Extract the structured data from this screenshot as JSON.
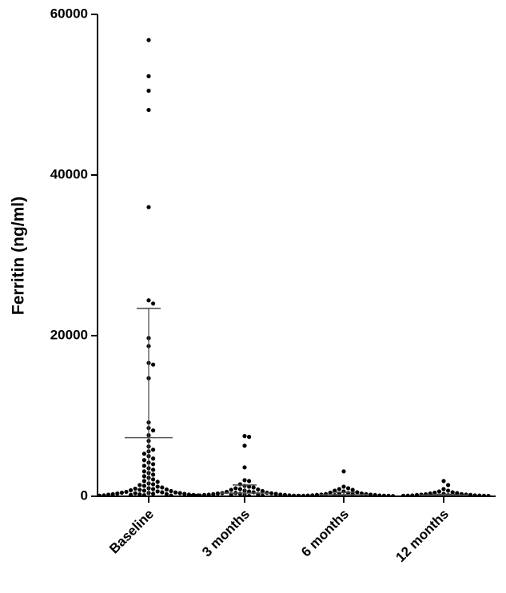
{
  "chart_data": {
    "type": "dotplot",
    "ylabel": "Ferritin (ng/ml)",
    "color": "#000000",
    "categories": [
      "Baseline",
      "3 months",
      "6 months",
      "12 months"
    ],
    "ylim": [
      0,
      60000
    ],
    "yticks": [
      0,
      20000,
      40000,
      60000
    ],
    "groups": [
      {
        "mean": 7300,
        "sd": 16100,
        "values": [
          56800,
          52300,
          50500,
          48100,
          36000,
          24400,
          24000,
          19700,
          18700,
          16600,
          16400,
          14700,
          9200,
          8500,
          8200,
          7600,
          6900,
          6200,
          5800,
          5600,
          5300,
          5000,
          4700,
          4500,
          4200,
          4000,
          3800,
          3500,
          3300,
          3100,
          2900,
          2700,
          2500,
          2300,
          2100,
          1900,
          1800,
          1600,
          1500,
          1400,
          1300,
          1200,
          1100,
          1000,
          950,
          900,
          850,
          800,
          750,
          700,
          650,
          600,
          550,
          500,
          480,
          450,
          420,
          400,
          380,
          350,
          320,
          300,
          280,
          260,
          240,
          220,
          200,
          180,
          160,
          140,
          120,
          100,
          90,
          80
        ]
      },
      {
        "mean": 400,
        "sd": 1000,
        "values": [
          7500,
          7400,
          6300,
          3600,
          2000,
          1900,
          1500,
          1300,
          1200,
          1100,
          1000,
          900,
          850,
          800,
          700,
          650,
          600,
          550,
          500,
          450,
          420,
          400,
          380,
          350,
          320,
          300,
          280,
          260,
          240,
          220,
          200,
          180,
          160,
          140,
          120,
          100,
          90,
          80,
          70,
          60,
          50,
          40
        ]
      },
      {
        "mean": 200,
        "sd": 300,
        "values": [
          3100,
          1200,
          1000,
          900,
          800,
          700,
          600,
          500,
          450,
          400,
          350,
          300,
          280,
          260,
          240,
          220,
          200,
          180,
          160,
          140,
          120,
          100,
          90,
          80,
          70,
          60,
          50,
          40,
          30
        ]
      },
      {
        "mean": 150,
        "sd": 100,
        "values": [
          1900,
          1400,
          900,
          700,
          600,
          500,
          450,
          400,
          350,
          300,
          280,
          250,
          220,
          200,
          180,
          160,
          140,
          120,
          100,
          90,
          80,
          70,
          60,
          50,
          40
        ]
      }
    ]
  }
}
